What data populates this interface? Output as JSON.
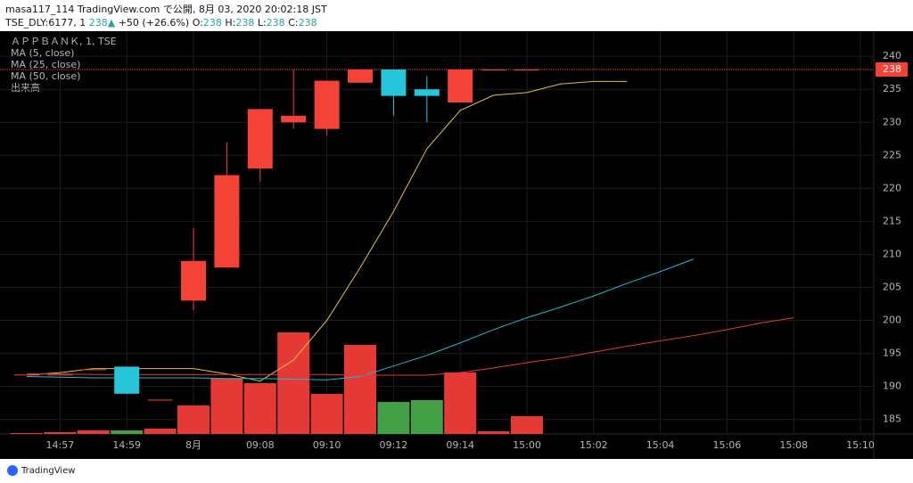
{
  "chart_data": {
    "type": "candlestick",
    "header": "masa117_114 TradingView.com で公開, 8月 03, 2020 20:02:18 JST",
    "quote": {
      "symbol": "TSE_DLY:6177, 1",
      "price": "238",
      "arrow": "▲",
      "change": "+50 (+26.6%)",
      "o_label": "O:",
      "o": "238",
      "h_label": "H:",
      "h": "238",
      "l_label": "L:",
      "l": "238",
      "c_label": "C:",
      "c": "238"
    },
    "title": "ＡＰＰＢＡＮＫ, 1, TSE",
    "volume_name": "出来高",
    "footer": "TradingView",
    "categories": [
      null,
      "14:57",
      null,
      "14:59",
      null,
      "8月",
      null,
      "09:08",
      null,
      "09:10",
      null,
      "09:12",
      null,
      "09:14",
      null,
      "15:00",
      null,
      "15:02",
      null,
      "15:04",
      null,
      "15:06",
      null,
      "15:08",
      null,
      "15:10"
    ],
    "open": [
      191.8,
      191.8,
      192.6,
      193,
      188,
      203,
      208,
      223,
      230,
      229,
      236,
      238,
      235,
      233,
      238,
      238,
      null,
      null,
      null,
      null,
      null,
      null,
      null,
      null,
      null,
      null
    ],
    "high": [
      191.8,
      191.8,
      192.6,
      193,
      188,
      214,
      227,
      232,
      238,
      236.3,
      238,
      238,
      237,
      238,
      238,
      238,
      null,
      null,
      null,
      null,
      null,
      null,
      null,
      null,
      null,
      null
    ],
    "low": [
      191.8,
      191.8,
      192.6,
      188.9,
      188,
      201.5,
      208,
      221,
      229,
      228,
      236,
      231,
      230,
      233,
      238,
      238,
      null,
      null,
      null,
      null,
      null,
      null,
      null,
      null,
      null,
      null
    ],
    "close": [
      191.8,
      191.8,
      192.6,
      188.9,
      188,
      209,
      222,
      232,
      231,
      236.3,
      238,
      234,
      234,
      238,
      238,
      238,
      null,
      null,
      null,
      null,
      null,
      null,
      null,
      null,
      null,
      null
    ],
    "up_color": "#f44336",
    "down_color": "#26c6da",
    "volume": [
      1,
      2,
      4,
      4,
      6,
      32,
      62,
      57,
      114,
      45,
      100,
      36,
      38,
      69,
      3,
      20,
      null,
      null,
      null,
      null,
      null,
      null,
      null,
      null,
      null,
      null
    ],
    "volume_lim": [
      0,
      150
    ],
    "volume_up_color": "#e53935",
    "volume_down_color": "#43a047",
    "series": [
      {
        "name": "MA (5, close)",
        "color": "#e0c341",
        "values": [
          191.7,
          192.1,
          192.7,
          192.7,
          192.7,
          192.7,
          191.9,
          190.8,
          194,
          200,
          208,
          216.5,
          226,
          231.8,
          234.1,
          234.5,
          235.8,
          236.2,
          236.2,
          null,
          null,
          null,
          null,
          null,
          null,
          null
        ]
      },
      {
        "name": "MA (25, close)",
        "color": "#1fb8d4",
        "values": [
          191.5,
          191.4,
          191.3,
          191.3,
          191.3,
          191.3,
          191.2,
          191.2,
          191.1,
          191,
          191.5,
          193.1,
          194.7,
          196.6,
          198.6,
          200.4,
          202,
          203.7,
          205.6,
          207.4,
          209.3,
          null,
          null,
          null,
          null,
          null
        ]
      },
      {
        "name": "MA (50, close)",
        "color": "#e53935",
        "values": [
          191.9,
          191.9,
          191.8,
          191.8,
          191.8,
          191.8,
          191.8,
          191.8,
          191.8,
          191.8,
          191.7,
          191.7,
          191.7,
          192.1,
          192.8,
          193.6,
          194.3,
          195.2,
          196.1,
          196.9,
          197.7,
          198.6,
          199.6,
          200.4,
          null,
          null
        ]
      }
    ],
    "last_price": 238,
    "ylim": [
      182.8,
      243.8
    ],
    "yticks": [
      185,
      190,
      195,
      200,
      205,
      210,
      215,
      220,
      225,
      230,
      235,
      240
    ],
    "grid": true
  }
}
